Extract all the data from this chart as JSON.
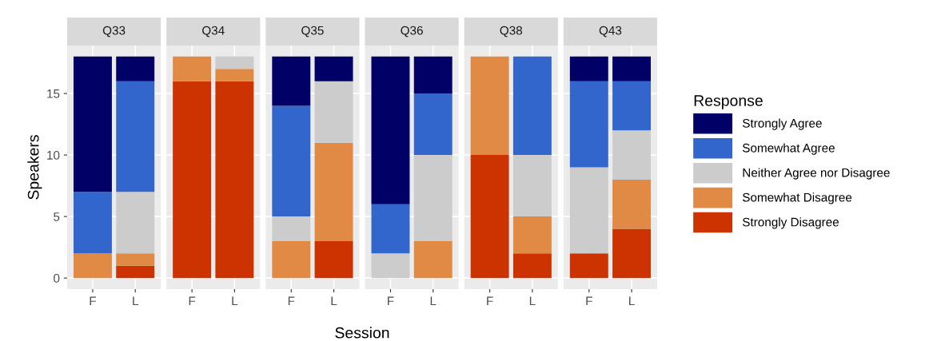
{
  "chart_data": [
    {
      "type": "bar",
      "stacked": true,
      "title": "Q33",
      "ylabel": "Speakers",
      "categories": [
        "F",
        "L"
      ],
      "ylim": [
        -0.9,
        18.9
      ],
      "yticks": [
        0,
        5,
        10,
        15
      ],
      "grid": true,
      "series": [
        {
          "color": "#cc3300",
          "values": [
            0,
            1
          ]
        },
        {
          "color": "#e08a45",
          "values": [
            2,
            1
          ]
        },
        {
          "color": "#cccccc",
          "values": [
            0,
            5
          ]
        },
        {
          "color": "#3366cc",
          "values": [
            5,
            9
          ]
        },
        {
          "color": "#000066",
          "values": [
            11,
            2
          ]
        }
      ]
    },
    {
      "type": "bar",
      "stacked": true,
      "title": "Q34",
      "categories": [
        "F",
        "L"
      ],
      "ylim": [
        -0.9,
        18.9
      ],
      "yticks": [
        0,
        5,
        10,
        15
      ],
      "grid": true,
      "tick_labels": "x",
      "series": [
        {
          "color": "#cc3300",
          "values": [
            16,
            16
          ]
        },
        {
          "color": "#e08a45",
          "values": [
            2,
            1
          ]
        },
        {
          "color": "#cccccc",
          "values": [
            0,
            1
          ]
        },
        {
          "color": "#3366cc",
          "values": [
            0,
            0
          ]
        },
        {
          "color": "#000066",
          "values": [
            0,
            0
          ]
        }
      ]
    },
    {
      "type": "bar",
      "stacked": true,
      "title": "Q35",
      "xlabel": "Session",
      "categories": [
        "F",
        "L"
      ],
      "ylim": [
        -0.9,
        18.9
      ],
      "yticks": [
        0,
        5,
        10,
        15
      ],
      "grid": true,
      "tick_labels": "x",
      "series": [
        {
          "color": "#cc3300",
          "values": [
            0,
            3
          ]
        },
        {
          "color": "#e08a45",
          "values": [
            3,
            8
          ]
        },
        {
          "color": "#cccccc",
          "values": [
            2,
            5
          ]
        },
        {
          "color": "#3366cc",
          "values": [
            9,
            0
          ]
        },
        {
          "color": "#000066",
          "values": [
            4,
            2
          ]
        }
      ]
    },
    {
      "type": "bar",
      "stacked": true,
      "title": "Q36",
      "categories": [
        "F",
        "L"
      ],
      "ylim": [
        -0.9,
        18.9
      ],
      "yticks": [
        0,
        5,
        10,
        15
      ],
      "grid": true,
      "tick_labels": "x",
      "series": [
        {
          "color": "#cc3300",
          "values": [
            0,
            0
          ]
        },
        {
          "color": "#e08a45",
          "values": [
            0,
            3
          ]
        },
        {
          "color": "#cccccc",
          "values": [
            2,
            7
          ]
        },
        {
          "color": "#3366cc",
          "values": [
            4,
            5
          ]
        },
        {
          "color": "#000066",
          "values": [
            12,
            3
          ]
        }
      ]
    },
    {
      "type": "bar",
      "stacked": true,
      "title": "Q38",
      "categories": [
        "F",
        "L"
      ],
      "ylim": [
        -0.9,
        18.9
      ],
      "yticks": [
        0,
        5,
        10,
        15
      ],
      "grid": true,
      "tick_labels": "x",
      "series": [
        {
          "color": "#cc3300",
          "values": [
            10,
            2
          ]
        },
        {
          "color": "#e08a45",
          "values": [
            8,
            3
          ]
        },
        {
          "color": "#cccccc",
          "values": [
            0,
            5
          ]
        },
        {
          "color": "#3366cc",
          "values": [
            0,
            8
          ]
        },
        {
          "color": "#000066",
          "values": [
            0,
            0
          ]
        }
      ]
    },
    {
      "type": "bar",
      "stacked": true,
      "title": "Q43",
      "categories": [
        "F",
        "L"
      ],
      "ylim": [
        -0.9,
        18.9
      ],
      "yticks": [
        0,
        5,
        10,
        15
      ],
      "grid": true,
      "legend": "right",
      "legend_title": "Response",
      "tick_labels": "x",
      "series": [
        {
          "name": "Strongly Disagree",
          "color": "#cc3300",
          "values": [
            2,
            4
          ]
        },
        {
          "name": "Somewhat Disagree",
          "color": "#e08a45",
          "values": [
            0,
            4
          ]
        },
        {
          "name": "Neither Agree nor Disagree",
          "color": "#cccccc",
          "values": [
            7,
            4
          ]
        },
        {
          "name": "Somewhat Agree",
          "color": "#3366cc",
          "values": [
            7,
            4
          ]
        },
        {
          "name": "Strongly Agree",
          "color": "#000066",
          "values": [
            2,
            2
          ]
        }
      ]
    }
  ]
}
